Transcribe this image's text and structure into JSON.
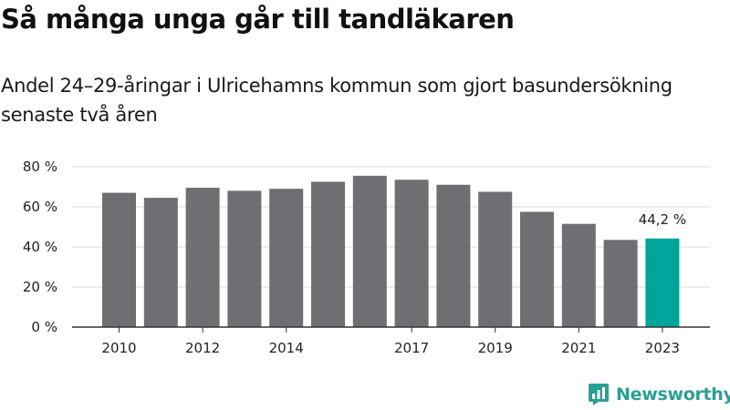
{
  "header": {
    "title": "Så många unga går till tandläkaren",
    "subtitle": "Andel 24–29-åringar i Ulricehamns kommun som gjort basundersökning senaste två åren"
  },
  "chart_data": {
    "type": "bar",
    "categories": [
      "2010",
      "2011",
      "2012",
      "2013",
      "2014",
      "2015",
      "2016",
      "2017",
      "2018",
      "2019",
      "2020",
      "2021",
      "2022",
      "2023"
    ],
    "values": [
      67,
      64.5,
      69.5,
      68,
      69,
      72.5,
      75.5,
      73.5,
      71,
      67.5,
      57.5,
      51.5,
      43.5,
      44.2
    ],
    "x_tick_labels": [
      "2010",
      "2012",
      "2014",
      "2017",
      "2019",
      "2021",
      "2023"
    ],
    "y_ticks": [
      0,
      20,
      40,
      60,
      80
    ],
    "y_tick_labels": [
      "0 %",
      "20 %",
      "40 %",
      "60 %",
      "80 %"
    ],
    "ylim": [
      0,
      80
    ],
    "grid": true,
    "highlight_index": 13,
    "highlight_label": "44,2 %",
    "colors": {
      "bar": "#6f6e72",
      "highlight": "#00a599",
      "grid": "#d9d9d9",
      "axis": "#333333"
    }
  },
  "brand": {
    "name": "Newsworthy",
    "color": "#2aa095",
    "icon": "newsworthy-logo-icon"
  }
}
